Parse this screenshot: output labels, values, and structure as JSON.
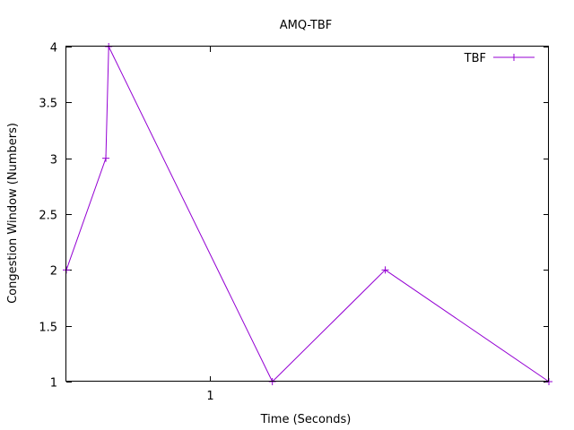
{
  "chart_data": {
    "type": "line",
    "title": "AMQ-TBF",
    "xlabel": "Time (Seconds)",
    "ylabel": "Congestion Window (Numbers)",
    "xlim": [
      0.49,
      2.2
    ],
    "ylim": [
      1,
      4
    ],
    "x_ticks": [
      1
    ],
    "y_ticks": [
      1,
      1.5,
      2,
      2.5,
      3,
      3.5,
      4
    ],
    "grid": false,
    "legend_position": "top-right",
    "series": [
      {
        "name": "TBF",
        "color": "#9400d3",
        "marker": "plus",
        "x": [
          0.49,
          0.63,
          0.64,
          1.22,
          1.62,
          2.2
        ],
        "y": [
          2,
          3,
          4,
          1,
          2,
          1
        ]
      }
    ]
  }
}
